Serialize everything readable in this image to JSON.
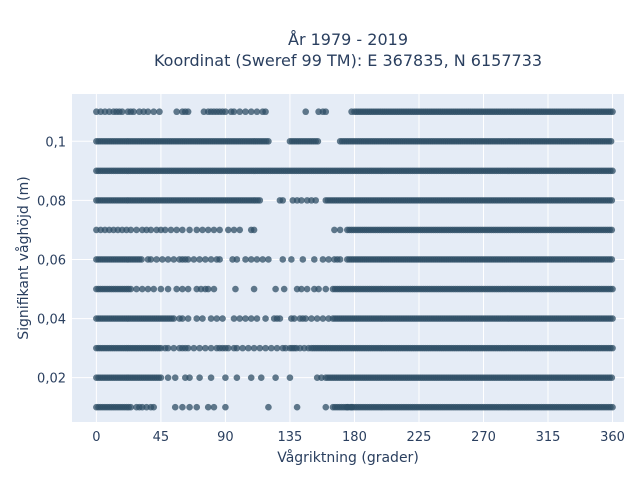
{
  "chart_data": {
    "type": "scatter",
    "title": [
      "År 1979 - 2019",
      "Koordinat (Sweref 99 TM): E 367835, N 6157733"
    ],
    "xlabel": "Vågriktning (grader)",
    "ylabel": "Signifikant våghöjd (m)",
    "xlim": [
      -17,
      368
    ],
    "ylim": [
      0.005,
      0.116
    ],
    "x_ticks": [
      0,
      45,
      90,
      135,
      180,
      225,
      270,
      315,
      360
    ],
    "y_ticks": [
      0.02,
      0.04,
      0.06,
      0.08,
      0.1
    ],
    "y_tick_labels": [
      "0,02",
      "0,04",
      "0,06",
      "0,08",
      "0,1"
    ],
    "marker_color": "#2f4f66",
    "plot_background": "#e5ecf6",
    "grid": true,
    "series": [
      {
        "y": 0.11,
        "dense": [
          [
            180,
            360
          ]
        ],
        "points": [
          0,
          3,
          6,
          9,
          12,
          14,
          16,
          18,
          22,
          24,
          26,
          30,
          33,
          36,
          40,
          44,
          56,
          60,
          62,
          64,
          75,
          78,
          80,
          82,
          84,
          86,
          88,
          90,
          94,
          96,
          100,
          104,
          108,
          112,
          116,
          118,
          146,
          155,
          158,
          160,
          178
        ]
      },
      {
        "y": 0.1,
        "dense": [
          [
            0,
            120
          ],
          [
            135,
            155
          ],
          [
            170,
            360
          ]
        ],
        "points": []
      },
      {
        "y": 0.09,
        "dense": [
          [
            0,
            360
          ]
        ],
        "points": []
      },
      {
        "y": 0.08,
        "dense": [
          [
            0,
            115
          ],
          [
            160,
            360
          ]
        ],
        "points": [
          128,
          130,
          137,
          140,
          143,
          147,
          150,
          153
        ]
      },
      {
        "y": 0.07,
        "dense": [
          [
            175,
            360
          ]
        ],
        "points": [
          0,
          3,
          6,
          9,
          12,
          15,
          18,
          21,
          24,
          28,
          32,
          35,
          38,
          42,
          45,
          48,
          52,
          56,
          60,
          65,
          70,
          74,
          78,
          82,
          86,
          92,
          96,
          100,
          108,
          110,
          166,
          170
        ]
      },
      {
        "y": 0.06,
        "dense": [
          [
            0,
            32
          ],
          [
            175,
            360
          ]
        ],
        "points": [
          36,
          38,
          42,
          46,
          50,
          54,
          58,
          60,
          62,
          64,
          68,
          72,
          76,
          80,
          84,
          86,
          95,
          98,
          104,
          108,
          112,
          116,
          120,
          130,
          136,
          144,
          152,
          158,
          162,
          166,
          168,
          170
        ]
      },
      {
        "y": 0.05,
        "dense": [
          [
            0,
            25
          ],
          [
            165,
            360
          ]
        ],
        "points": [
          28,
          32,
          36,
          40,
          45,
          50,
          56,
          60,
          64,
          70,
          73,
          76,
          78,
          82,
          97,
          110,
          125,
          131,
          140,
          143,
          147,
          152,
          155,
          160
        ]
      },
      {
        "y": 0.04,
        "dense": [
          [
            0,
            55
          ],
          [
            165,
            360
          ]
        ],
        "points": [
          58,
          60,
          64,
          70,
          74,
          80,
          84,
          88,
          96,
          100,
          104,
          108,
          112,
          118,
          124,
          126,
          128,
          136,
          138,
          142,
          144,
          146,
          150,
          154,
          158,
          162
        ]
      },
      {
        "y": 0.03,
        "dense": [
          [
            0,
            45
          ],
          [
            135,
            140
          ],
          [
            150,
            360
          ]
        ],
        "points": [
          48,
          50,
          54,
          58,
          60,
          62,
          64,
          68,
          72,
          76,
          80,
          84,
          86,
          88,
          90,
          92,
          96,
          98,
          102,
          106,
          110,
          114,
          118,
          122,
          126,
          130,
          132,
          142,
          145,
          148
        ]
      },
      {
        "y": 0.02,
        "dense": [
          [
            0,
            45
          ],
          [
            160,
            360
          ]
        ],
        "points": [
          50,
          55,
          62,
          65,
          72,
          80,
          90,
          98,
          108,
          115,
          125,
          135,
          154,
          157
        ]
      },
      {
        "y": 0.01,
        "dense": [
          [
            0,
            25
          ],
          [
            165,
            360
          ]
        ],
        "points": [
          28,
          30,
          32,
          35,
          38,
          40,
          55,
          60,
          65,
          70,
          78,
          82,
          90,
          120,
          140,
          160,
          175,
          178
        ]
      }
    ]
  }
}
